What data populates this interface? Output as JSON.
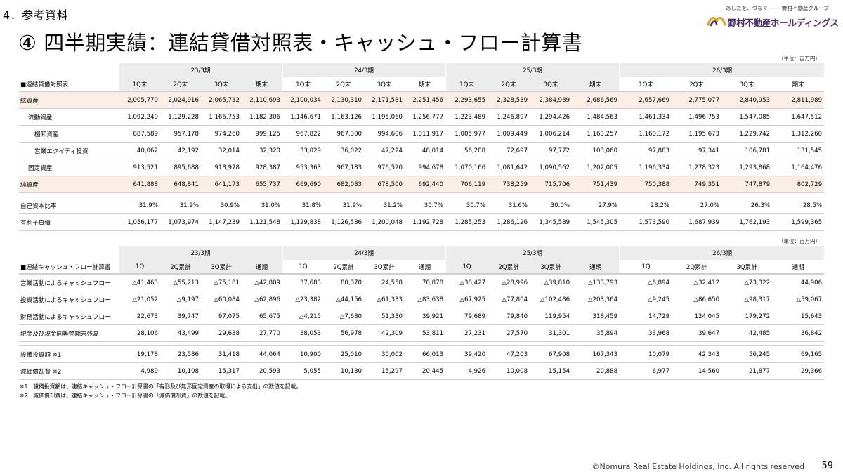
{
  "header": {
    "section_label": "4．参考資料",
    "title": "④ 四半期実績：連結貸借対照表・キャッシュ・フロー計算書",
    "logo_tagline": "あしたを、つなぐ ―― 野村不動産グループ",
    "logo_name": "野村不動産ホールディングス",
    "unit": "（単位：百万円）"
  },
  "colors": {
    "row_highlight": "#fbeee6",
    "header_bg": "#ececec",
    "logo": "#4a2a6b"
  },
  "balance_sheet": {
    "periods": [
      "23/3期",
      "24/3期",
      "25/3期",
      "26/3期"
    ],
    "section_title": "■連結貸借対照表",
    "columns": [
      "1Q末",
      "2Q末",
      "3Q末",
      "期末"
    ],
    "rows": [
      {
        "label": "総資産",
        "values": [
          "2,005,770",
          "2,024,916",
          "2,065,732",
          "2,110,693",
          "2,100,034",
          "2,130,310",
          "2,171,581",
          "2,251,456",
          "2,293,655",
          "2,328,539",
          "2,384,989",
          "2,686,569",
          "2,657,669",
          "2,775,077",
          "2,840,953",
          "2,811,989"
        ]
      },
      {
        "label": "流動資産",
        "values": [
          "1,092,249",
          "1,129,228",
          "1,166,753",
          "1,182,306",
          "1,146,671",
          "1,163,126",
          "1,195,060",
          "1,256,777",
          "1,223,489",
          "1,246,897",
          "1,294,426",
          "1,484,563",
          "1,461,334",
          "1,496,753",
          "1,547,085",
          "1,647,512"
        ]
      },
      {
        "label": "棚卸資産",
        "values": [
          "887,589",
          "957,178",
          "974,260",
          "999,125",
          "967,822",
          "967,300",
          "994,606",
          "1,011,917",
          "1,005,977",
          "1,009,449",
          "1,006,214",
          "1,163,257",
          "1,160,172",
          "1,195,673",
          "1,229,742",
          "1,312,260"
        ]
      },
      {
        "label": "営業エクイティ投資",
        "values": [
          "40,062",
          "42,192",
          "32,014",
          "32,320",
          "33,029",
          "36,022",
          "47,224",
          "48,014",
          "56,208",
          "72,697",
          "97,772",
          "103,060",
          "97,803",
          "97,341",
          "106,781",
          "131,545"
        ]
      },
      {
        "label": "固定資産",
        "values": [
          "913,521",
          "895,688",
          "918,978",
          "928,387",
          "953,363",
          "967,183",
          "976,520",
          "994,678",
          "1,070,166",
          "1,081,642",
          "1,090,562",
          "1,202,005",
          "1,196,334",
          "1,278,323",
          "1,293,868",
          "1,164,476"
        ]
      },
      {
        "label": "純資産",
        "values": [
          "641,888",
          "648,841",
          "641,173",
          "655,737",
          "669,690",
          "682,083",
          "678,500",
          "692,440",
          "706,119",
          "738,259",
          "715,706",
          "751,439",
          "750,388",
          "749,351",
          "747,879",
          "802,729"
        ]
      },
      {
        "label": "自己資本比率",
        "values": [
          "31.9%",
          "31.9%",
          "30.9%",
          "31.0%",
          "31.8%",
          "31.9%",
          "31.2%",
          "30.7%",
          "30.7%",
          "31.6%",
          "30.0%",
          "27.9%",
          "28.2%",
          "27.0%",
          "26.3%",
          "28.5%"
        ]
      },
      {
        "label": "有利子負債",
        "values": [
          "1,056,177",
          "1,073,974",
          "1,147,239",
          "1,121,548",
          "1,129,838",
          "1,126,586",
          "1,200,048",
          "1,192,728",
          "1,285,253",
          "1,286,126",
          "1,345,589",
          "1,545,305",
          "1,573,590",
          "1,687,939",
          "1,762,193",
          "1,599,365"
        ]
      }
    ]
  },
  "cash_flow": {
    "periods": [
      "23/3期",
      "24/3期",
      "25/3期",
      "26/3期"
    ],
    "section_title": "■連結キャッシュ・フロー計算書",
    "columns": [
      "1Q",
      "2Q累計",
      "3Q累計",
      "通期"
    ],
    "rows": [
      {
        "label": "営業活動によるキャッシュフロー",
        "values": [
          "△41,463",
          "△55,213",
          "△75,181",
          "△42,809",
          "37,683",
          "80,370",
          "24,558",
          "70,878",
          "△38,427",
          "△28,996",
          "△39,810",
          "△133,793",
          "△6,894",
          "△32,412",
          "△73,322",
          "44,906"
        ]
      },
      {
        "label": "投資活動によるキャッシュフロー",
        "values": [
          "△21,052",
          "△9,197",
          "△60,084",
          "△62,896",
          "△23,382",
          "△44,156",
          "△61,333",
          "△83,638",
          "△67,925",
          "△77,804",
          "△102,486",
          "△203,364",
          "△9,245",
          "△86,650",
          "△98,317",
          "△59,067"
        ]
      },
      {
        "label": "財務活動によるキャッシュフロー",
        "values": [
          "22,673",
          "39,747",
          "97,075",
          "65,675",
          "△4,215",
          "△7,680",
          "51,330",
          "39,921",
          "79,689",
          "79,840",
          "119,954",
          "318,459",
          "14,729",
          "124,045",
          "179,272",
          "15,643"
        ]
      },
      {
        "label": "現金及び現金同等物期末残高",
        "values": [
          "28,106",
          "43,499",
          "29,638",
          "27,770",
          "38,053",
          "56,978",
          "42,309",
          "53,811",
          "27,231",
          "27,570",
          "31,301",
          "35,894",
          "33,968",
          "39,647",
          "42,485",
          "36,842"
        ]
      },
      {
        "label": "設備投資額 ※1",
        "values": [
          "19,178",
          "23,586",
          "31,418",
          "44,064",
          "10,900",
          "25,010",
          "30,002",
          "66,013",
          "39,420",
          "47,203",
          "67,908",
          "167,343",
          "10,079",
          "42,343",
          "56,245",
          "69,165"
        ]
      },
      {
        "label": "減価償却費 ※2",
        "values": [
          "4,989",
          "10,108",
          "15,317",
          "20,593",
          "5,055",
          "10,130",
          "15,297",
          "20,445",
          "4,926",
          "10,008",
          "15,154",
          "20,888",
          "6,977",
          "14,560",
          "21,877",
          "29,366"
        ]
      }
    ]
  },
  "notes": [
    "※1　設備投資額は、連結キャッシュ・フロー計算書の「有形及び無形固定資産の取得による支出」の数値を記載。",
    "※2　減価償却費は、連結キャッシュ・フロー計算書の「減価償却費」の数値を記載。"
  ],
  "footer": {
    "copyright": "©Nomura Real Estate Holdings, Inc. All rights reserved",
    "page_number": "59"
  }
}
